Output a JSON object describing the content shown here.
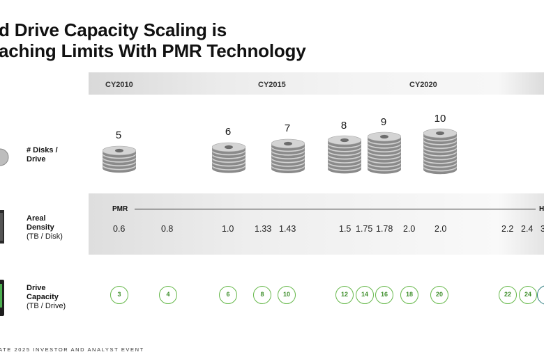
{
  "slide": {
    "title_line1": "d Drive Capacity Scaling is",
    "title_line2": "aching Limits With PMR Technology",
    "footer": "ATE 2025 INVESTOR AND ANALYST EVENT"
  },
  "years": [
    "CY2010",
    "CY2015",
    "CY2020"
  ],
  "rows": {
    "disks": {
      "label_line1": "# Disks /",
      "label_line2": "Drive"
    },
    "density": {
      "label_line1": "Areal",
      "label_line2": "Density",
      "label_line3": "(TB / Disk)"
    },
    "capacity": {
      "label_line1": "Drive",
      "label_line2": "Capacity",
      "label_line3": "(TB / Drive)"
    }
  },
  "disk_counts": [
    "5",
    "6",
    "7",
    "8",
    "9",
    "10"
  ],
  "pmr_label": "PMR",
  "next_tech_label_cut": "H",
  "areal_density": [
    "0.6",
    "0.8",
    "1.0",
    "1.33",
    "1.43",
    "1.5",
    "1.75",
    "1.78",
    "2.0",
    "2.0",
    "2.2",
    "2.4",
    "3"
  ],
  "drive_capacity": [
    "3",
    "4",
    "6",
    "8",
    "10",
    "12",
    "14",
    "16",
    "18",
    "20",
    "22",
    "24"
  ],
  "colors": {
    "capacity_circle": "#66b84a",
    "capacity_text": "#3f8f2c",
    "next_tech_circle": "#2f7d80"
  }
}
